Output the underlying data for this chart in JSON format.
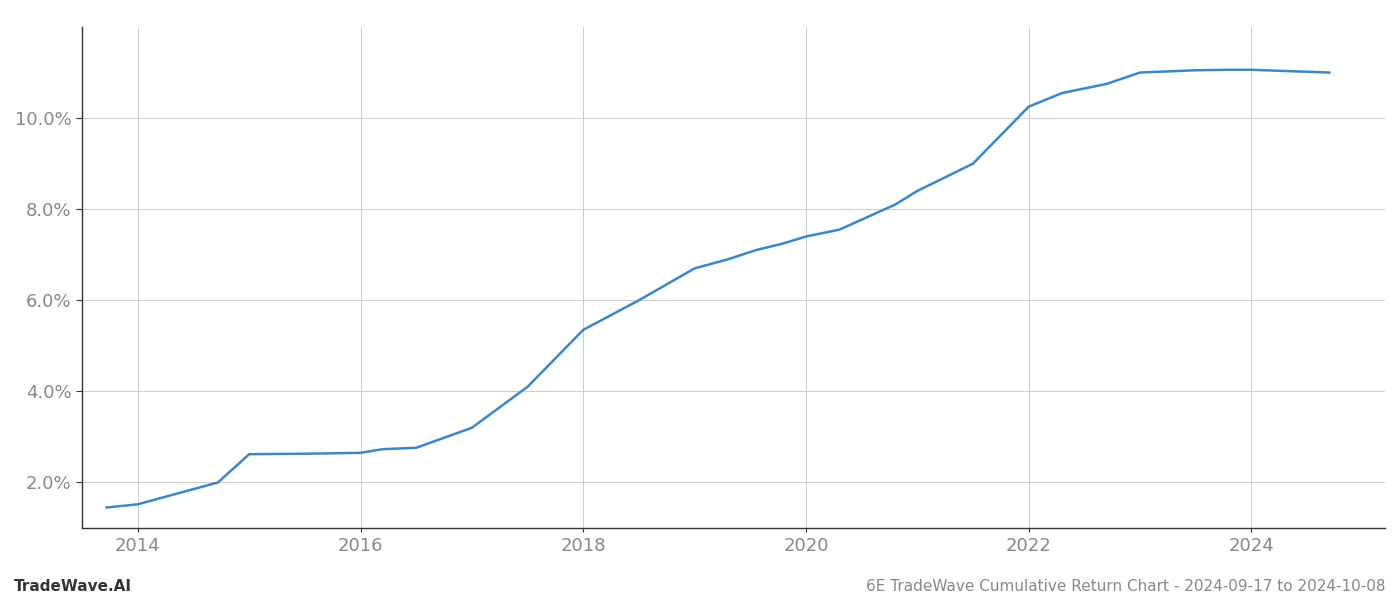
{
  "x_values": [
    2013.72,
    2014.0,
    2014.72,
    2015.0,
    2015.5,
    2016.0,
    2016.2,
    2016.5,
    2017.0,
    2017.5,
    2018.0,
    2018.5,
    2019.0,
    2019.3,
    2019.55,
    2019.8,
    2020.0,
    2020.3,
    2020.8,
    2021.0,
    2021.5,
    2022.0,
    2022.3,
    2022.7,
    2023.0,
    2023.5,
    2023.8,
    2024.0,
    2024.7
  ],
  "y_values": [
    1.45,
    1.52,
    2.0,
    2.62,
    2.63,
    2.65,
    2.73,
    2.76,
    3.2,
    4.1,
    5.35,
    6.0,
    6.7,
    6.9,
    7.1,
    7.25,
    7.4,
    7.55,
    8.1,
    8.4,
    9.0,
    10.25,
    10.55,
    10.75,
    11.0,
    11.05,
    11.06,
    11.06,
    11.0
  ],
  "line_color": "#3a87c8",
  "line_width": 1.8,
  "xlim": [
    2013.5,
    2025.2
  ],
  "ylim": [
    1.0,
    12.0
  ],
  "yticks": [
    2.0,
    4.0,
    6.0,
    8.0,
    10.0
  ],
  "ytick_labels": [
    "2.0%",
    "4.0%",
    "6.0%",
    "8.0%",
    "10.0%"
  ],
  "xticks": [
    2014,
    2016,
    2018,
    2020,
    2022,
    2024
  ],
  "xtick_labels": [
    "2014",
    "2016",
    "2018",
    "2020",
    "2022",
    "2024"
  ],
  "grid_color": "#cccccc",
  "grid_linestyle": "-",
  "grid_linewidth": 0.7,
  "background_color": "#ffffff",
  "watermark_left": "TradeWave.AI",
  "watermark_right": "6E TradeWave Cumulative Return Chart - 2024-09-17 to 2024-10-08",
  "tick_fontsize": 13,
  "watermark_fontsize": 11,
  "fig_width": 14.0,
  "fig_height": 6.0
}
